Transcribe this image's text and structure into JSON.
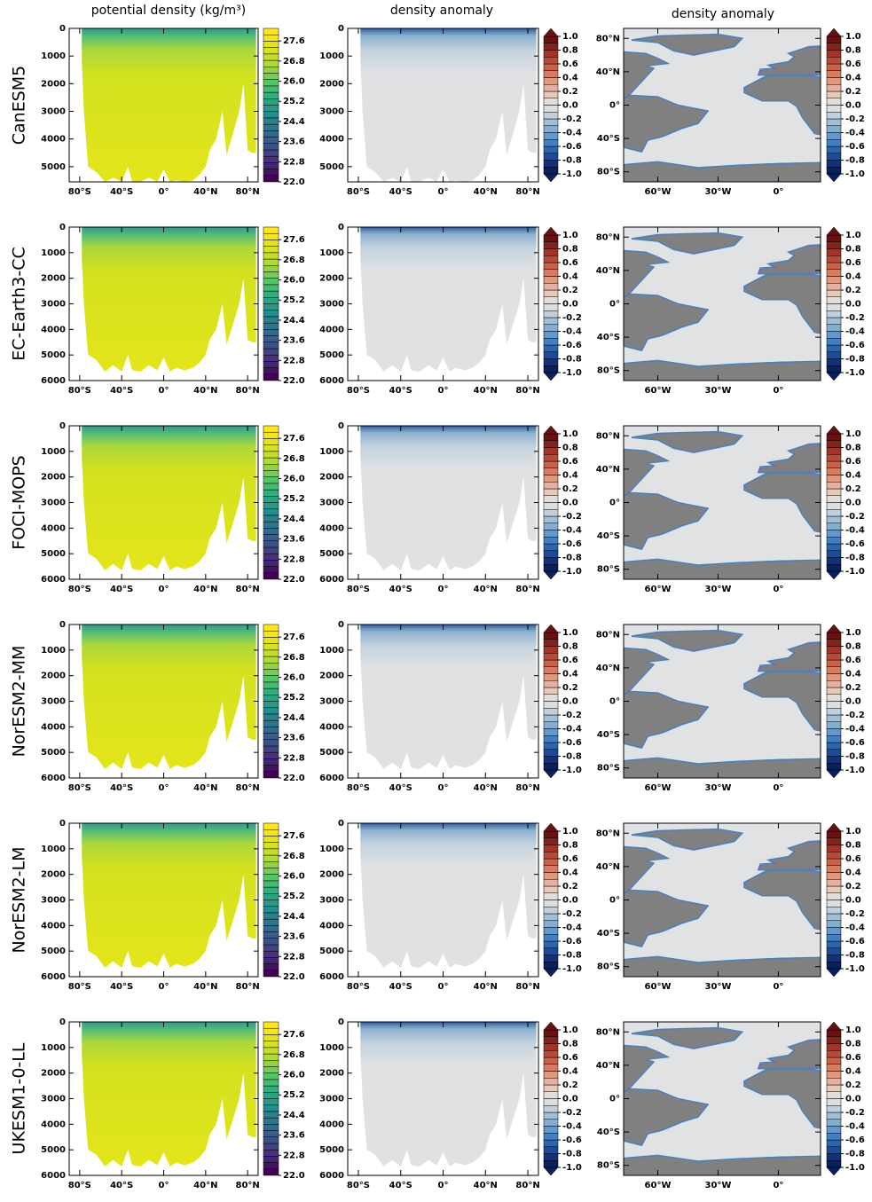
{
  "column_titles": [
    "potential density (kg/m³)",
    "density anomaly",
    "density anomaly"
  ],
  "rows": [
    {
      "model": "CanESM5",
      "depth_lim": [
        0,
        5550
      ],
      "depth_ticks": [
        0,
        1000,
        2000,
        3000,
        4000,
        5000
      ]
    },
    {
      "model": "EC-Earth3-CC",
      "depth_lim": [
        0,
        6000
      ],
      "depth_ticks": [
        0,
        1000,
        2000,
        3000,
        4000,
        5000,
        6000
      ]
    },
    {
      "model": "FOCI-MOPS",
      "depth_lim": [
        0,
        6000
      ],
      "depth_ticks": [
        0,
        1000,
        2000,
        3000,
        4000,
        5000,
        6000
      ]
    },
    {
      "model": "NorESM2-MM",
      "depth_lim": [
        0,
        6000
      ],
      "depth_ticks": [
        0,
        1000,
        2000,
        3000,
        4000,
        5000,
        6000
      ]
    },
    {
      "model": "NorESM2-LM",
      "depth_lim": [
        0,
        6000
      ],
      "depth_ticks": [
        0,
        1000,
        2000,
        3000,
        4000,
        5000,
        6000
      ]
    },
    {
      "model": "UKESM1-0-LL",
      "depth_lim": [
        0,
        6000
      ],
      "depth_ticks": [
        0,
        1000,
        2000,
        3000,
        4000,
        5000,
        6000
      ]
    }
  ],
  "section_axis": {
    "xlim": [
      -90,
      90
    ],
    "xticks": [
      {
        "value": -80,
        "label": "80°S"
      },
      {
        "value": -40,
        "label": "40°S"
      },
      {
        "value": 0,
        "label": "0°"
      },
      {
        "value": 40,
        "label": "40°N"
      },
      {
        "value": 80,
        "label": "80°N"
      }
    ]
  },
  "map_axis": {
    "xlim": [
      -77,
      21
    ],
    "ylim": [
      -92,
      92
    ],
    "xticks": [
      {
        "value": -60,
        "label": "60°W"
      },
      {
        "value": -30,
        "label": "30°W"
      },
      {
        "value": 0,
        "label": "0°"
      }
    ],
    "yticks": [
      {
        "value": 80,
        "label": "80°N"
      },
      {
        "value": 40,
        "label": "40°N"
      },
      {
        "value": 0,
        "label": "0°"
      },
      {
        "value": -40,
        "label": "40°S"
      },
      {
        "value": -80,
        "label": "80°S"
      }
    ]
  },
  "density_colorbar": {
    "lim": [
      22,
      28.1
    ],
    "ticks": [
      27.6,
      26.8,
      {
        "value": 26,
        "label": "26.0"
      },
      25.2,
      24.4,
      23.6,
      22.8,
      {
        "value": 22,
        "label": "22.0"
      }
    ],
    "colors": [
      "#440154",
      "#472d7b",
      "#3b528b",
      "#2c728e",
      "#21918c",
      "#28ae80",
      "#5ec962",
      "#addc30",
      "#dde318",
      "#fde725"
    ]
  },
  "anomaly_colorbar": {
    "lim": [
      -1,
      1
    ],
    "ticks": [
      {
        "value": 1,
        "label": "1.0"
      },
      0.8,
      0.6,
      0.4,
      0.2,
      {
        "value": 0,
        "label": "0.0"
      },
      -0.2,
      -0.4,
      -0.6,
      -0.8,
      {
        "value": -1,
        "label": "-1.0"
      }
    ],
    "colors": [
      "#0b1f5c",
      "#12307e",
      "#1a4a9a",
      "#2a66b0",
      "#4480bd",
      "#6598c6",
      "#86adcc",
      "#a4bfd2",
      "#c2d0da",
      "#dcdfe2",
      "#e6dcd8",
      "#e6c8bd",
      "#e3b19f",
      "#dd9880",
      "#d47d62",
      "#c9624a",
      "#b94a37",
      "#a33526",
      "#87221a",
      "#6a1210"
    ]
  }
}
